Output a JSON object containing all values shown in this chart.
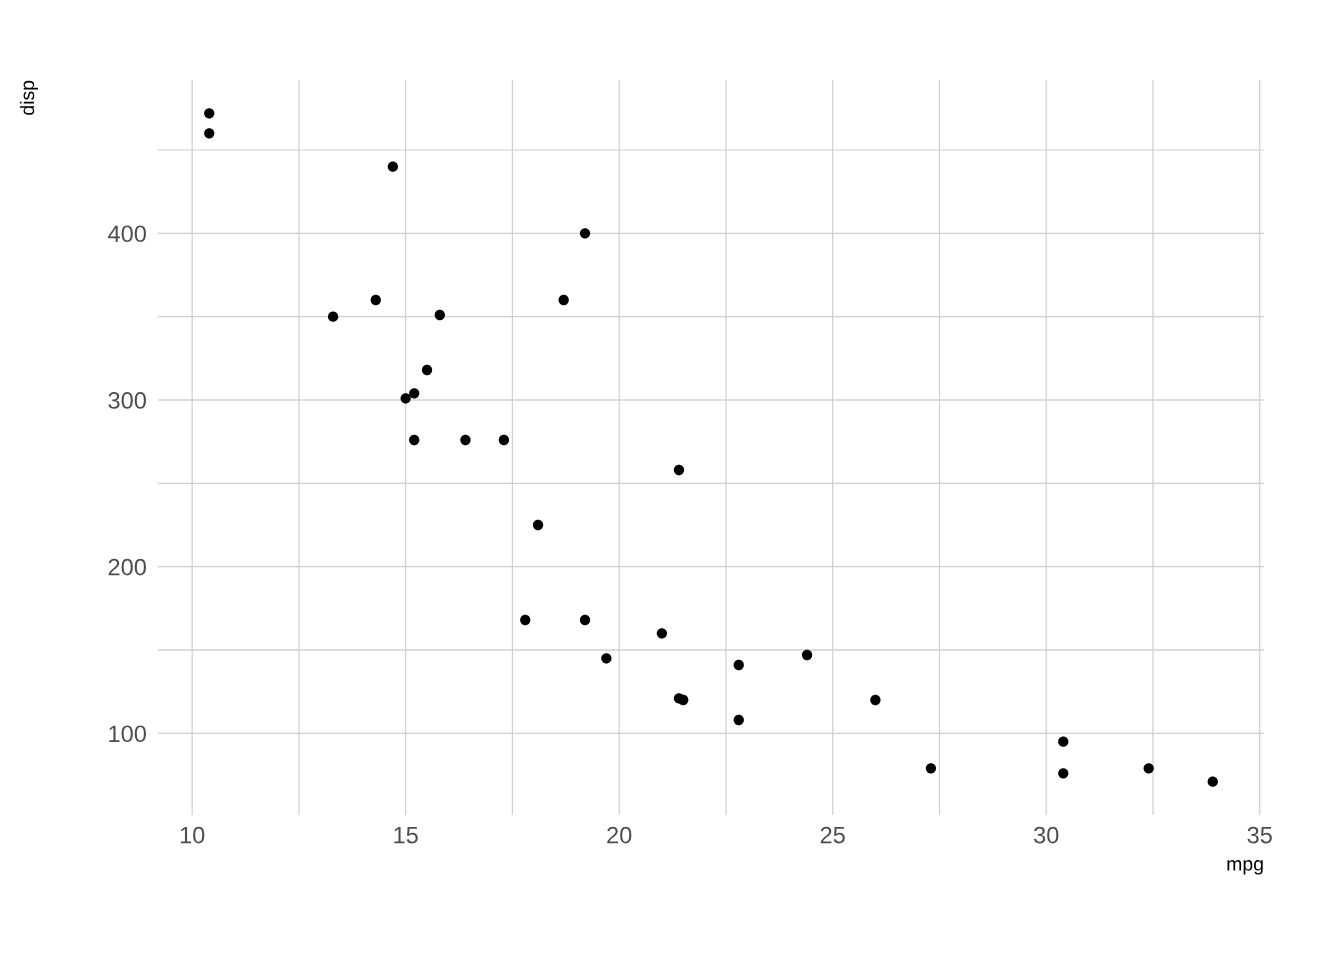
{
  "chart_data": {
    "type": "scatter",
    "xlabel": "mpg",
    "ylabel": "disp",
    "x": [
      21.0,
      22.8,
      21.4,
      18.7,
      18.1,
      14.3,
      24.4,
      22.8,
      19.2,
      17.8,
      16.4,
      17.3,
      15.2,
      10.4,
      10.4,
      14.7,
      32.4,
      30.4,
      33.9,
      21.5,
      15.5,
      15.2,
      13.3,
      19.2,
      27.3,
      26.0,
      30.4,
      15.8,
      19.7,
      15.0,
      21.4
    ],
    "series": [
      {
        "color": "#000000",
        "values": [
          160,
          108,
          258,
          360,
          225,
          360,
          147,
          141,
          168,
          168,
          276,
          276,
          276,
          472,
          460,
          440,
          79,
          76,
          71,
          120,
          318,
          304,
          350,
          400,
          79,
          120,
          95,
          351,
          145,
          301,
          121
        ]
      }
    ],
    "xlim": [
      9.2,
      35.1
    ],
    "ylim": [
      51,
      492
    ],
    "xticks": [
      10,
      {
        "value": 12.5,
        "label": null
      },
      15,
      {
        "value": 17.5,
        "label": null
      },
      20,
      {
        "value": 22.5,
        "label": null
      },
      25,
      {
        "value": 27.5,
        "label": null
      },
      30,
      {
        "value": 32.5,
        "label": null
      },
      35
    ],
    "yticks": [
      100,
      {
        "value": 150,
        "label": null
      },
      200,
      {
        "value": 250,
        "label": null
      },
      300,
      {
        "value": 350,
        "label": null
      },
      400,
      {
        "value": 450,
        "label": null
      }
    ],
    "grid": true,
    "marker": "circle"
  }
}
